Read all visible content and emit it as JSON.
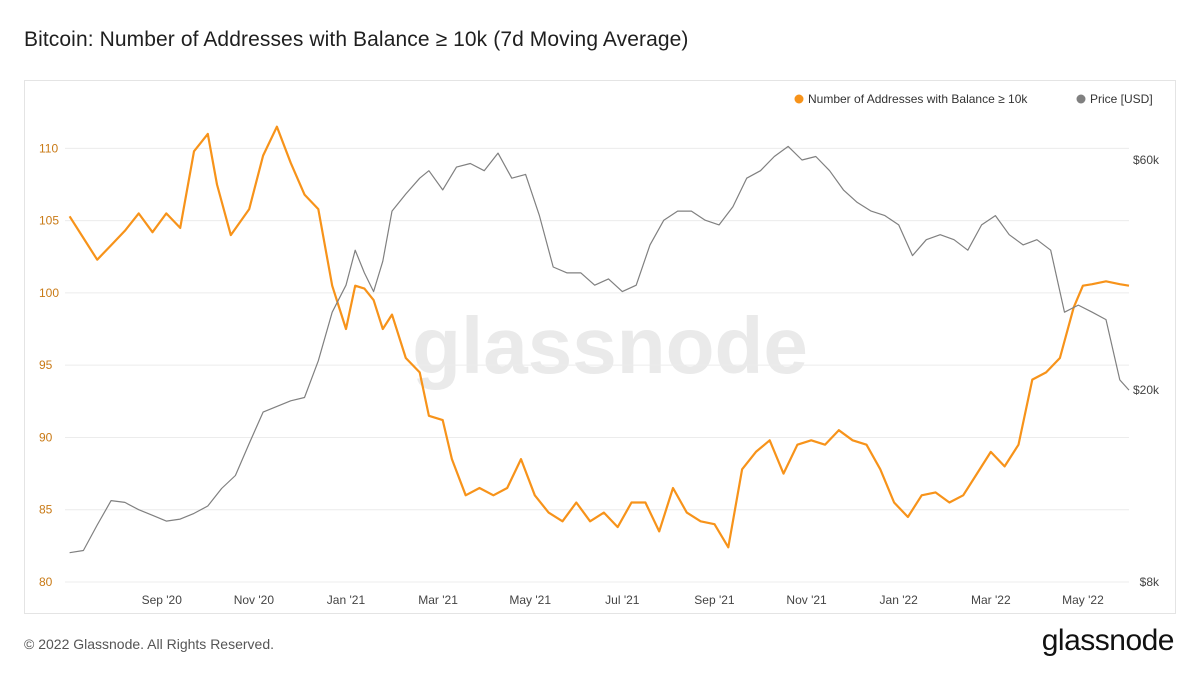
{
  "title": "Bitcoin: Number of Addresses with Balance ≥ 10k (7d Moving Average)",
  "watermark": "glassnode",
  "footer": {
    "copyright": "© 2022 Glassnode. All Rights Reserved.",
    "logo": "glassnode"
  },
  "colors": {
    "addresses": "#f7931a",
    "price": "#808080",
    "grid": "#ececec",
    "watermark": "#eaeaea"
  },
  "chart_data": {
    "type": "line",
    "title": "Bitcoin: Number of Addresses with Balance ≥ 10k (7d Moving Average)",
    "legend_position": "top-right",
    "grid": true,
    "x_ticks": [
      "Sep '20",
      "Nov '20",
      "Jan '21",
      "Mar '21",
      "May '21",
      "Jul '21",
      "Sep '21",
      "Nov '21",
      "Jan '22",
      "Mar '22",
      "May '22"
    ],
    "x_tick_months": [
      2,
      4,
      6,
      8,
      10,
      12,
      14,
      16,
      18,
      20,
      22
    ],
    "xlim_months": [
      -0.1,
      23.0
    ],
    "y_left": {
      "ticks": [
        80,
        85,
        90,
        95,
        100,
        105,
        110
      ],
      "range": [
        80,
        113
      ]
    },
    "y_right": {
      "ticks": [
        8000,
        20000,
        60000
      ],
      "tick_labels": [
        "$8k",
        "$20k",
        "$60k"
      ],
      "scale": "log",
      "range": [
        8000,
        78000
      ]
    },
    "series": [
      {
        "name": "Number of Addresses with Balance ≥ 10k",
        "axis": "left",
        "x_months": [
          0.0,
          0.3,
          0.6,
          0.9,
          1.2,
          1.5,
          1.8,
          2.1,
          2.4,
          2.7,
          3.0,
          3.2,
          3.5,
          3.9,
          4.2,
          4.5,
          4.8,
          5.1,
          5.4,
          5.7,
          6.0,
          6.2,
          6.4,
          6.6,
          6.8,
          7.0,
          7.3,
          7.6,
          7.8,
          8.1,
          8.3,
          8.6,
          8.9,
          9.2,
          9.5,
          9.8,
          10.1,
          10.4,
          10.7,
          11.0,
          11.3,
          11.6,
          11.9,
          12.2,
          12.5,
          12.8,
          13.1,
          13.4,
          13.7,
          14.0,
          14.3,
          14.6,
          14.9,
          15.2,
          15.5,
          15.8,
          16.1,
          16.4,
          16.7,
          17.0,
          17.3,
          17.6,
          17.9,
          18.2,
          18.5,
          18.8,
          19.1,
          19.4,
          19.7,
          20.0,
          20.3,
          20.6,
          20.9,
          21.2,
          21.5,
          21.8,
          22.0,
          22.2,
          22.5,
          22.8,
          23.0
        ],
        "values": [
          105.3,
          103.8,
          102.3,
          103.3,
          104.3,
          105.5,
          104.2,
          105.5,
          104.5,
          109.8,
          111.0,
          107.5,
          104.0,
          105.8,
          109.5,
          111.5,
          109.0,
          106.8,
          105.8,
          100.5,
          97.5,
          100.5,
          100.3,
          99.5,
          97.5,
          98.5,
          95.5,
          94.5,
          91.5,
          91.2,
          88.5,
          86.0,
          86.5,
          86.0,
          86.5,
          88.5,
          86.0,
          84.8,
          84.2,
          85.5,
          84.2,
          84.8,
          83.8,
          85.5,
          85.5,
          83.5,
          86.5,
          84.8,
          84.2,
          84.0,
          82.4,
          87.8,
          89.0,
          89.8,
          87.5,
          89.5,
          89.8,
          89.5,
          90.5,
          89.8,
          89.5,
          87.8,
          85.5,
          84.5,
          86.0,
          86.2,
          85.5,
          86.0,
          87.5,
          89.0,
          88.0,
          89.5,
          94.0,
          94.5,
          95.5,
          99.0,
          100.5,
          100.6,
          100.8,
          100.6,
          100.5
        ]
      },
      {
        "name": "Price [USD]",
        "axis": "right",
        "x_months": [
          0.0,
          0.3,
          0.6,
          0.9,
          1.2,
          1.5,
          1.8,
          2.1,
          2.4,
          2.7,
          3.0,
          3.3,
          3.6,
          3.9,
          4.2,
          4.5,
          4.8,
          5.1,
          5.4,
          5.7,
          6.0,
          6.2,
          6.4,
          6.6,
          6.8,
          7.0,
          7.3,
          7.6,
          7.8,
          8.1,
          8.4,
          8.7,
          9.0,
          9.3,
          9.6,
          9.9,
          10.2,
          10.5,
          10.8,
          11.1,
          11.4,
          11.7,
          12.0,
          12.3,
          12.6,
          12.9,
          13.2,
          13.5,
          13.8,
          14.1,
          14.4,
          14.7,
          15.0,
          15.3,
          15.6,
          15.9,
          16.2,
          16.5,
          16.8,
          17.1,
          17.4,
          17.7,
          18.0,
          18.3,
          18.6,
          18.9,
          19.2,
          19.5,
          19.8,
          20.1,
          20.4,
          20.7,
          21.0,
          21.3,
          21.6,
          21.9,
          22.2,
          22.5,
          22.8,
          23.0
        ],
        "values": [
          9200,
          9300,
          10500,
          11800,
          11700,
          11300,
          11000,
          10700,
          10800,
          11100,
          11500,
          12500,
          13300,
          15500,
          18000,
          18500,
          19000,
          19300,
          23000,
          29000,
          33000,
          39000,
          35000,
          32000,
          37000,
          47000,
          51000,
          55000,
          57000,
          52000,
          58000,
          59000,
          57000,
          62000,
          55000,
          56000,
          46000,
          36000,
          35000,
          35000,
          33000,
          34000,
          32000,
          33000,
          40000,
          45000,
          47000,
          47000,
          45000,
          44000,
          48000,
          55000,
          57000,
          61000,
          64000,
          60000,
          61000,
          57000,
          52000,
          49000,
          47000,
          46000,
          44000,
          38000,
          41000,
          42000,
          41000,
          39000,
          44000,
          46000,
          42000,
          40000,
          41000,
          39000,
          29000,
          30000,
          29000,
          28000,
          21000,
          20000
        ]
      }
    ]
  }
}
